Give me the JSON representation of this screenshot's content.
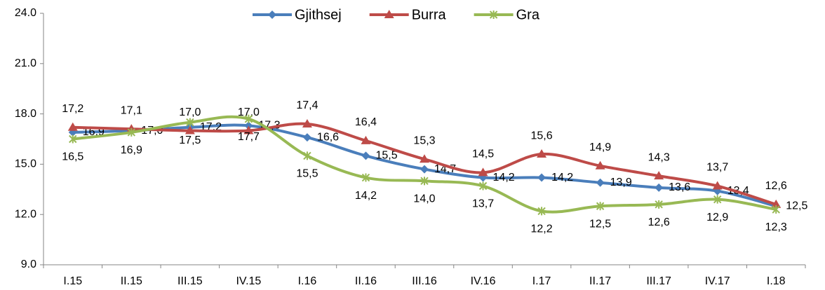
{
  "chart_data": {
    "type": "line",
    "categories": [
      "I.15",
      "II.15",
      "III.15",
      "IV.15",
      "I.16",
      "II.16",
      "III.16",
      "IV.16",
      "I.17",
      "II.17",
      "III.17",
      "IV.17",
      "I.18"
    ],
    "series": [
      {
        "name": "Gjithsej",
        "color": "#4a7ebb",
        "marker": "diamond",
        "values": [
          16.9,
          17.0,
          17.2,
          17.3,
          16.6,
          15.5,
          14.7,
          14.2,
          14.2,
          13.9,
          13.6,
          13.4,
          12.5
        ],
        "value_labels": [
          "16,9",
          "17,0",
          "17,2",
          "17,3",
          "16,6",
          "15,5",
          "14,7",
          "14,2",
          "14,2",
          "13,9",
          "13,6",
          "13,4",
          "12,5"
        ]
      },
      {
        "name": "Burra",
        "color": "#be4b48",
        "marker": "triangle",
        "values": [
          17.2,
          17.1,
          17.0,
          17.0,
          17.4,
          16.4,
          15.3,
          14.5,
          15.6,
          14.9,
          14.3,
          13.7,
          12.6
        ],
        "value_labels": [
          "17,2",
          "17,1",
          "17,0",
          "17,0",
          "17,4",
          "16,4",
          "15,3",
          "14,5",
          "15,6",
          "14,9",
          "14,3",
          "13,7",
          "12,6"
        ]
      },
      {
        "name": "Gra",
        "color": "#98b954",
        "marker": "star",
        "values": [
          16.5,
          16.9,
          17.5,
          17.7,
          15.5,
          14.2,
          14.0,
          13.7,
          12.2,
          12.5,
          12.6,
          12.9,
          12.3
        ],
        "value_labels": [
          "16,5",
          "16,9",
          "17,5",
          "17,7",
          "15,5",
          "14,2",
          "14,0",
          "13,7",
          "12,2",
          "12,5",
          "12,6",
          "12,9",
          "12,3"
        ]
      }
    ],
    "ylim": [
      9,
      24
    ],
    "yticks": [
      {
        "value": 9,
        "label": "9.0"
      },
      {
        "value": 12,
        "label": "12.0"
      },
      {
        "value": 15,
        "label": "15.0"
      },
      {
        "value": 18,
        "label": "18.0"
      },
      {
        "value": 21,
        "label": "21.0"
      },
      {
        "value": 24,
        "label": "24.0"
      }
    ],
    "legend": "top"
  }
}
